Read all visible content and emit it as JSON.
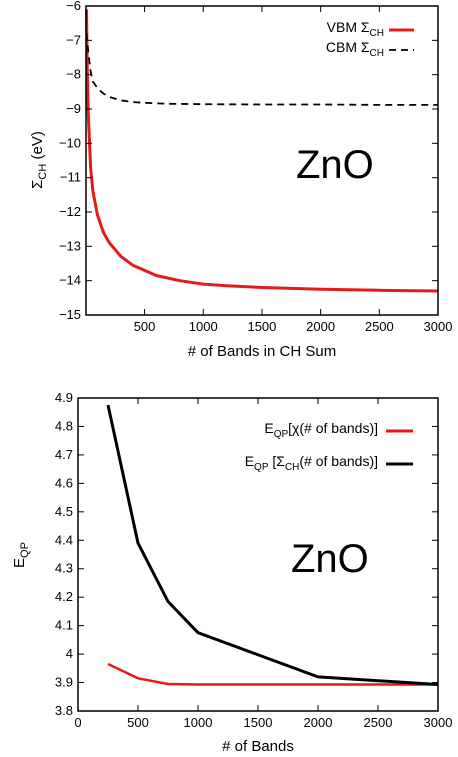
{
  "chart_data": [
    {
      "type": "line",
      "annotation": "ZnO",
      "xlabel": "# of Bands in CH Sum",
      "ylabel_main": "Σ",
      "ylabel_sub": "CH",
      "ylabel_unit": " (eV)",
      "xlim": [
        1,
        3000
      ],
      "ylim": [
        -15,
        -6
      ],
      "xticks": [
        500,
        1000,
        1500,
        2000,
        2500,
        3000
      ],
      "yticks": [
        -15,
        -14,
        -13,
        -12,
        -11,
        -10,
        -9,
        -8,
        -7,
        -6
      ],
      "grid": false,
      "legend_position": "top-right",
      "series": [
        {
          "name_main": "VBM Σ",
          "name_sub": "CH",
          "color": "#e41a1c",
          "style": "solid",
          "x": [
            5,
            10,
            20,
            40,
            60,
            100,
            150,
            200,
            300,
            400,
            500,
            600,
            800,
            1000,
            1200,
            1500,
            2000,
            2500,
            3000
          ],
          "y": [
            -6.1,
            -7.6,
            -9.1,
            -10.7,
            -11.4,
            -12.1,
            -12.6,
            -12.9,
            -13.3,
            -13.55,
            -13.7,
            -13.85,
            -14.0,
            -14.1,
            -14.15,
            -14.2,
            -14.25,
            -14.28,
            -14.3
          ]
        },
        {
          "name_main": "CBM Σ",
          "name_sub": "CH",
          "color": "#000000",
          "style": "dashed",
          "x": [
            5,
            20,
            40,
            60,
            100,
            150,
            200,
            300,
            400,
            500,
            700,
            1000,
            1500,
            2000,
            2500,
            3000
          ],
          "y": [
            -6.8,
            -7.3,
            -7.9,
            -8.2,
            -8.4,
            -8.55,
            -8.65,
            -8.75,
            -8.8,
            -8.82,
            -8.85,
            -8.86,
            -8.87,
            -8.87,
            -8.88,
            -8.88
          ]
        }
      ]
    },
    {
      "type": "line",
      "annotation": "ZnO",
      "xlabel": "# of Bands",
      "ylabel_main": "E",
      "ylabel_sub": "QP",
      "xlim": [
        0,
        3000
      ],
      "ylim": [
        3.8,
        4.9
      ],
      "xticks": [
        0,
        500,
        1000,
        1500,
        2000,
        2500,
        3000
      ],
      "yticks": [
        3.8,
        3.9,
        4,
        4.1,
        4.2,
        4.3,
        4.4,
        4.5,
        4.6,
        4.7,
        4.8,
        4.9
      ],
      "grid": false,
      "legend_position": "top-right",
      "series": [
        {
          "name_main": "E",
          "name_sub": "QP",
          "name_rest": "[χ(# of bands)]",
          "color": "#e41a1c",
          "style": "solid",
          "x": [
            250,
            500,
            750,
            1000,
            2000,
            3000
          ],
          "y": [
            3.965,
            3.915,
            3.895,
            3.893,
            3.893,
            3.893
          ]
        },
        {
          "name_main": "E",
          "name_sub": "QP",
          "name_rest": " [Σ",
          "name_sub2": "CH",
          "name_rest2": "(# of bands)]",
          "color": "#000000",
          "style": "solid",
          "x": [
            250,
            500,
            750,
            1000,
            2000,
            3000
          ],
          "y": [
            4.875,
            4.39,
            4.185,
            4.075,
            3.92,
            3.893
          ]
        }
      ]
    }
  ]
}
